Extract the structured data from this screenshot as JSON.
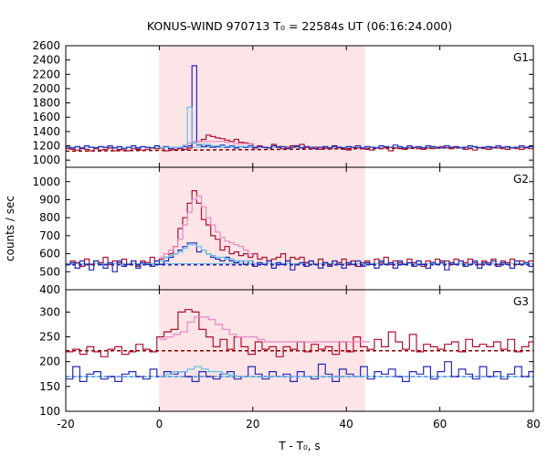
{
  "chart_data": {
    "type": "line",
    "title": "KONUS-WIND 970713 T₀ = 22584s UT (06:16:24.000)",
    "xlabel": "T - T₀, s",
    "ylabel": "counts / sec",
    "xlim": [
      -20,
      80
    ],
    "xticks": [
      -20,
      0,
      20,
      40,
      60,
      80
    ],
    "highlight_interval": [
      0,
      44
    ],
    "colors": {
      "highlight": "#fde4e6",
      "red": "#b01030",
      "blue": "#2828b8",
      "pink": "#e888c8",
      "light_blue": "#60c0e8",
      "bg_red": "#8b0000",
      "bg_blue": "#2828b8"
    },
    "panels": [
      {
        "label": "G1",
        "ylim": [
          900,
          2600
        ],
        "yticks": [
          1000,
          1200,
          1400,
          1600,
          1800,
          2000,
          2200,
          2400,
          2600
        ],
        "bin_width": 1.0,
        "series": [
          {
            "color": "red",
            "start": -20,
            "values": [
              1160,
              1150,
              1140,
              1170,
              1150,
              1130,
              1160,
              1140,
              1150,
              1170,
              1130,
              1150,
              1140,
              1130,
              1160,
              1150,
              1140,
              1150,
              1170,
              1160,
              1170,
              1130,
              1140,
              1150,
              1160,
              1150,
              1170,
              1240,
              1260,
              1290,
              1350,
              1330,
              1310,
              1300,
              1280,
              1260,
              1290,
              1250,
              1240,
              1230,
              1180,
              1200,
              1180,
              1170,
              1220,
              1190,
              1160,
              1180,
              1200,
              1190,
              1220,
              1180,
              1160,
              1180,
              1150,
              1170,
              1160,
              1190,
              1170,
              1150,
              1140,
              1180,
              1170,
              1160,
              1150,
              1140,
              1170,
              1160,
              1180,
              1130,
              1170,
              1160,
              1150,
              1170,
              1180,
              1160,
              1150,
              1170,
              1160,
              1180,
              1190,
              1170,
              1160,
              1180,
              1170,
              1150,
              1160,
              1140,
              1170,
              1160,
              1150,
              1180,
              1170,
              1160,
              1150,
              1170,
              1160,
              1150,
              1170,
              1160
            ]
          },
          {
            "color": "blue",
            "start": -20,
            "values": [
              1180,
              1170,
              1190,
              1160,
              1200,
              1180,
              1170,
              1190,
              1180,
              1200,
              1170,
              1190,
              1160,
              1180,
              1200,
              1170,
              1190,
              1180,
              1170,
              1200,
              1180,
              1190,
              1160,
              1180,
              1170,
              1190,
              1200,
              2320,
              1210,
              1190,
              1200,
              1180,
              1190,
              1210,
              1180,
              1200,
              1170,
              1190,
              1180,
              1200,
              1170,
              1190,
              1180,
              1170,
              1200,
              1180,
              1190,
              1160,
              1180,
              1200,
              1170,
              1190,
              1180,
              1160,
              1180,
              1190,
              1170,
              1200,
              1180,
              1170,
              1190,
              1180,
              1200,
              1170,
              1190,
              1180,
              1170,
              1200,
              1190,
              1180,
              1210,
              1190,
              1170,
              1200,
              1180,
              1190,
              1170,
              1200,
              1190,
              1180,
              1170,
              1200,
              1180,
              1190,
              1170,
              1180,
              1200,
              1190,
              1170,
              1180,
              1190,
              1170,
              1200,
              1180,
              1190,
              1170,
              1180,
              1200,
              1180,
              1190
            ]
          },
          {
            "color": "pink",
            "start": 0,
            "values": [
              1180,
              1180,
              1180,
              1180,
              1180,
              1210,
              1240,
              1260,
              1260,
              1260,
              1260,
              1260,
              1260,
              1260,
              1250,
              1250,
              1230,
              1230,
              1230,
              1230
            ]
          },
          {
            "color": "light_blue",
            "start": 0,
            "values": [
              1180,
              1180,
              1180,
              1180,
              1180,
              1200,
              1740,
              1240,
              1220,
              1220,
              1220,
              1200,
              1200,
              1200,
              1190,
              1190,
              1190,
              1190,
              1190,
              1190
            ]
          }
        ],
        "background": [
          {
            "color": "bg_red",
            "dash": "4,3",
            "x": [
              -20,
              80
            ],
            "y": [
              1125,
              1180
            ]
          },
          {
            "color": "light_blue",
            "dash": "",
            "x": [
              -20,
              80
            ],
            "y": [
              1180,
              1180
            ]
          }
        ]
      },
      {
        "label": "G2",
        "ylim": [
          400,
          1080
        ],
        "yticks": [
          400,
          500,
          600,
          700,
          800,
          900,
          1000
        ],
        "bin_width": 1.0,
        "series": [
          {
            "color": "red",
            "start": -20,
            "values": [
              540,
              560,
              550,
              530,
              570,
              540,
              560,
              550,
              580,
              540,
              560,
              550,
              570,
              540,
              560,
              530,
              560,
              550,
              580,
              560,
              570,
              580,
              600,
              640,
              740,
              800,
              880,
              950,
              880,
              790,
              760,
              700,
              680,
              620,
              640,
              600,
              610,
              590,
              600,
              580,
              600,
              570,
              580,
              560,
              570,
              580,
              600,
              560,
              580,
              570,
              580,
              550,
              560,
              540,
              570,
              550,
              540,
              560,
              550,
              570,
              540,
              560,
              530,
              550,
              560,
              540,
              570,
              550,
              580,
              540,
              560,
              550,
              540,
              570,
              550,
              560,
              530,
              560,
              550,
              570,
              550,
              560,
              540,
              570,
              560,
              550,
              570,
              550,
              540,
              560,
              550,
              570,
              540,
              560,
              550,
              570,
              540,
              560,
              550,
              560
            ]
          },
          {
            "color": "blue",
            "start": -20,
            "values": [
              540,
              550,
              520,
              560,
              540,
              510,
              560,
              540,
              520,
              550,
              500,
              560,
              530,
              540,
              560,
              520,
              550,
              540,
              530,
              560,
              540,
              560,
              580,
              600,
              620,
              640,
              660,
              660,
              610,
              620,
              600,
              580,
              570,
              560,
              580,
              560,
              550,
              560,
              540,
              560,
              530,
              550,
              540,
              560,
              520,
              550,
              540,
              560,
              510,
              540,
              550,
              530,
              560,
              540,
              520,
              550,
              530,
              560,
              540,
              520,
              550,
              540,
              560,
              530,
              550,
              540,
              520,
              560,
              540,
              550,
              520,
              560,
              540,
              550,
              530,
              560,
              540,
              520,
              550,
              540,
              560,
              510,
              550,
              540,
              560,
              530,
              540,
              560,
              520,
              550,
              540,
              560,
              530,
              550,
              540,
              520,
              560,
              540,
              550,
              530
            ]
          },
          {
            "color": "pink",
            "start": 0,
            "values": [
              580,
              600,
              620,
              640,
              680,
              760,
              830,
              900,
              920,
              860,
              800,
              760,
              720,
              690,
              670,
              660,
              650,
              640,
              620,
              600
            ]
          },
          {
            "color": "light_blue",
            "start": 0,
            "values": [
              560,
              580,
              590,
              600,
              610,
              630,
              650,
              650,
              640,
              620,
              600,
              590,
              580,
              580,
              570,
              570,
              560,
              560,
              560,
              560
            ]
          }
        ],
        "background": [
          {
            "color": "bg_red",
            "dash": "4,3",
            "x": [
              -20,
              80
            ],
            "y": [
              540,
              540
            ]
          },
          {
            "color": "bg_blue",
            "dash": "4,3",
            "x": [
              -20,
              80
            ],
            "y": [
              538,
              538
            ]
          },
          {
            "color": "light_blue",
            "dash": "",
            "x": [
              -20,
              80
            ],
            "y": [
              545,
              545
            ]
          }
        ]
      },
      {
        "label": "G3",
        "ylim": [
          100,
          345
        ],
        "yticks": [
          100,
          150,
          200,
          250,
          300
        ],
        "bin_width": 1.5,
        "series": [
          {
            "color": "red",
            "start": -20,
            "values": [
              220,
              225,
              215,
              230,
              220,
              210,
              225,
              230,
              215,
              220,
              235,
              225,
              220,
              250,
              260,
              265,
              300,
              305,
              300,
              265,
              250,
              230,
              245,
              225,
              250,
              230,
              215,
              240,
              225,
              230,
              210,
              230,
              225,
              240,
              220,
              235,
              225,
              230,
              215,
              240,
              220,
              250,
              230,
              225,
              245,
              230,
              260,
              240,
              225,
              255,
              220,
              235,
              230,
              225,
              235,
              240,
              220,
              245,
              230,
              235,
              230,
              240,
              225,
              245,
              220,
              230,
              240
            ]
          },
          {
            "color": "blue",
            "start": -20,
            "values": [
              165,
              190,
              160,
              175,
              180,
              165,
              170,
              160,
              175,
              180,
              170,
              165,
              185,
              170,
              180,
              175,
              180,
              170,
              160,
              180,
              170,
              165,
              175,
              180,
              165,
              170,
              190,
              175,
              165,
              180,
              170,
              175,
              160,
              180,
              170,
              165,
              195,
              175,
              160,
              185,
              175,
              170,
              190,
              165,
              180,
              175,
              185,
              170,
              160,
              180,
              175,
              190,
              165,
              180,
              200,
              170,
              185,
              175,
              165,
              190,
              170,
              180,
              165,
              175,
              190,
              170,
              180
            ]
          },
          {
            "color": "pink",
            "start": 0,
            "values": [
              245,
              250,
              255,
              260,
              280,
              290,
              290,
              285,
              275,
              265,
              255,
              250,
              250,
              250,
              245,
              240,
              240,
              240,
              240,
              240,
              240,
              240,
              240,
              240,
              240,
              240,
              240,
              240,
              240,
              240
            ]
          },
          {
            "color": "light_blue",
            "start": 0,
            "values": [
              170,
              175,
              180,
              180,
              185,
              190,
              185,
              180,
              180,
              175,
              172,
              170,
              170,
              170,
              170,
              170,
              170,
              170,
              170,
              170,
              170,
              170,
              170,
              170,
              170,
              170,
              170,
              170,
              170,
              170
            ]
          }
        ],
        "background": [
          {
            "color": "bg_red",
            "dash": "4,3",
            "x": [
              -20,
              80
            ],
            "y": [
              222,
              222
            ]
          },
          {
            "color": "bg_blue",
            "dash": "4,3",
            "x": [
              -20,
              80
            ],
            "y": [
              170,
              170
            ]
          },
          {
            "color": "light_blue",
            "dash": "",
            "x": [
              -20,
              80
            ],
            "y": [
              170,
              170
            ]
          }
        ]
      }
    ]
  }
}
